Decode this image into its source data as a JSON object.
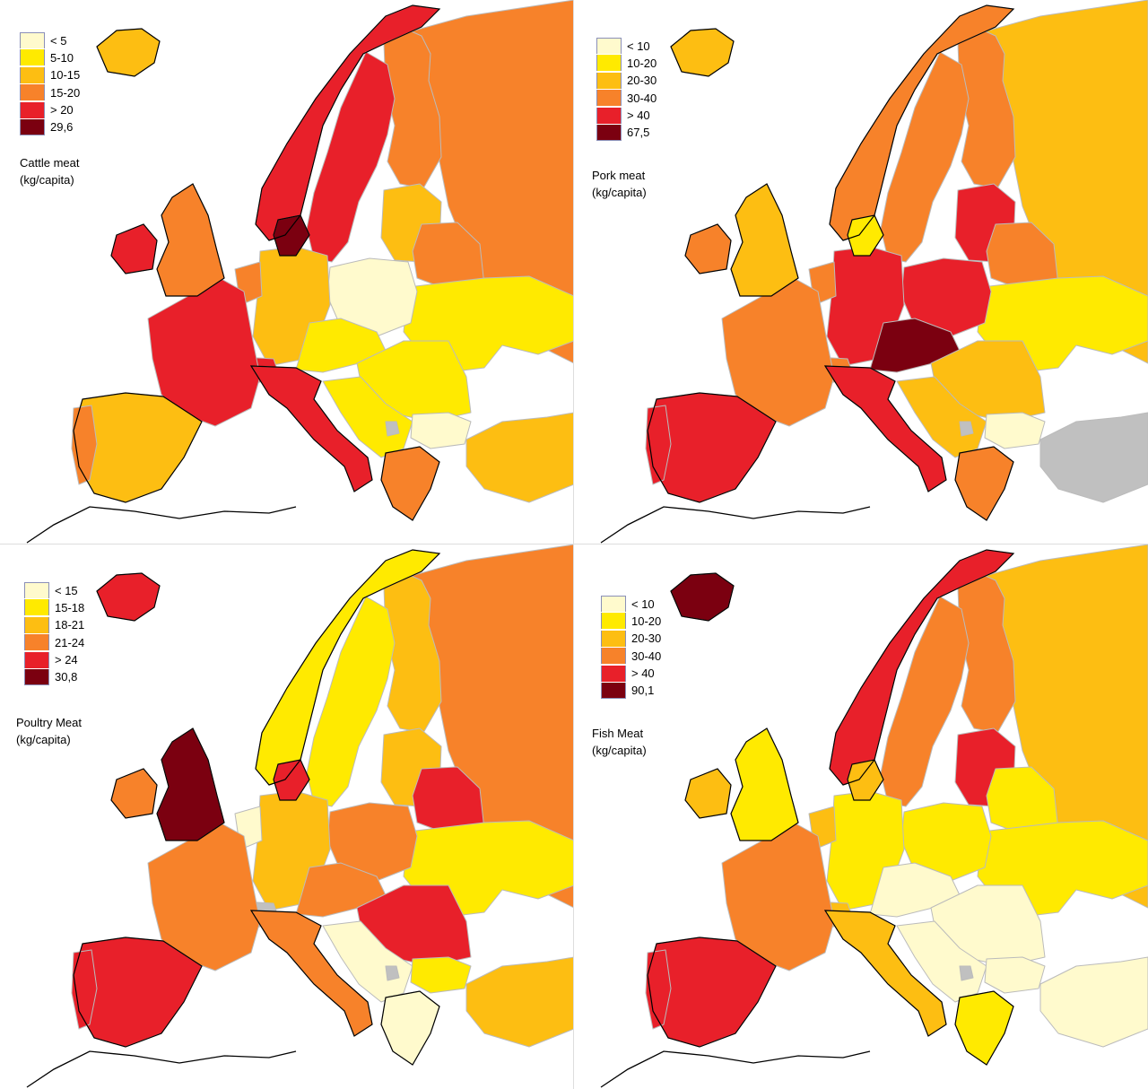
{
  "palette": {
    "c1": "#FFFACD",
    "c2": "#FFEA00",
    "c3": "#FDBE12",
    "c4": "#F7822A",
    "c5": "#E8202A",
    "c6": "#7B0010",
    "nodata": "#C0C0C0",
    "sea": "#FFFFFF",
    "border": "#000000",
    "inner_border": "#BBBBBB"
  },
  "panels": [
    {
      "id": "cattle",
      "legend": [
        "< 5",
        "5-10",
        "10-15",
        "15-20",
        "> 20",
        "29,6"
      ],
      "title_line1": "Cattle meat",
      "title_line2": "(kg/capita)",
      "regions": {
        "iceland": 3,
        "ireland": 5,
        "uk": 4,
        "norway": 5,
        "sweden": 5,
        "finland": 4,
        "russia": 4,
        "baltics": 3,
        "belarus": 4,
        "denmark": 6,
        "netherlands": 4,
        "germany": 3,
        "poland": 1,
        "czech_austria": 2,
        "ukraine": 2,
        "hungary_romania": 2,
        "france": 5,
        "switzerland": 5,
        "italy": 5,
        "iberia": 3,
        "portugal": 4,
        "balkans": 2,
        "bulgaria": 1,
        "greece": 4,
        "turkey": 3,
        "nodata": 0
      }
    },
    {
      "id": "pork",
      "legend": [
        "< 10",
        "10-20",
        "20-30",
        "30-40",
        "> 40",
        "67,5"
      ],
      "title_line1": "Pork meat",
      "title_line2": "(kg/capita)",
      "regions": {
        "iceland": 3,
        "ireland": 4,
        "uk": 3,
        "norway": 4,
        "sweden": 4,
        "finland": 4,
        "russia": 3,
        "baltics": 5,
        "belarus": 4,
        "denmark": 2,
        "netherlands": 4,
        "germany": 5,
        "poland": 5,
        "czech_austria": 6,
        "ukraine": 2,
        "hungary_romania": 3,
        "france": 4,
        "switzerland": 4,
        "italy": 5,
        "iberia": 5,
        "portugal": 5,
        "balkans": 3,
        "bulgaria": 1,
        "greece": 4,
        "turkey": 0,
        "nodata": 0
      }
    },
    {
      "id": "poultry",
      "legend": [
        "< 15",
        "15-18",
        "18-21",
        "21-24",
        "> 24",
        "30,8"
      ],
      "title_line1": "Poultry Meat",
      "title_line2": "(kg/capita)",
      "regions": {
        "iceland": 5,
        "ireland": 4,
        "uk": 6,
        "norway": 2,
        "sweden": 2,
        "finland": 3,
        "russia": 4,
        "baltics": 3,
        "belarus": 5,
        "denmark": 5,
        "netherlands": 1,
        "germany": 3,
        "poland": 4,
        "czech_austria": 4,
        "ukraine": 2,
        "hungary_romania": 5,
        "france": 4,
        "switzerland": 0,
        "italy": 4,
        "iberia": 5,
        "portugal": 5,
        "balkans": 1,
        "bulgaria": 2,
        "greece": 1,
        "turkey": 3,
        "nodata": 0
      }
    },
    {
      "id": "fish",
      "legend": [
        "< 10",
        "10-20",
        "20-30",
        "30-40",
        "> 40",
        "90,1"
      ],
      "title_line1": "Fish Meat",
      "title_line2": "(kg/capita)",
      "regions": {
        "iceland": 6,
        "ireland": 3,
        "uk": 2,
        "norway": 5,
        "sweden": 4,
        "finland": 4,
        "russia": 3,
        "baltics": 5,
        "belarus": 2,
        "denmark": 3,
        "netherlands": 3,
        "germany": 2,
        "poland": 2,
        "czech_austria": 1,
        "ukraine": 2,
        "hungary_romania": 1,
        "france": 4,
        "switzerland": 3,
        "italy": 3,
        "iberia": 5,
        "portugal": 5,
        "balkans": 1,
        "bulgaria": 1,
        "greece": 2,
        "turkey": 1,
        "nodata": 0
      }
    }
  ]
}
